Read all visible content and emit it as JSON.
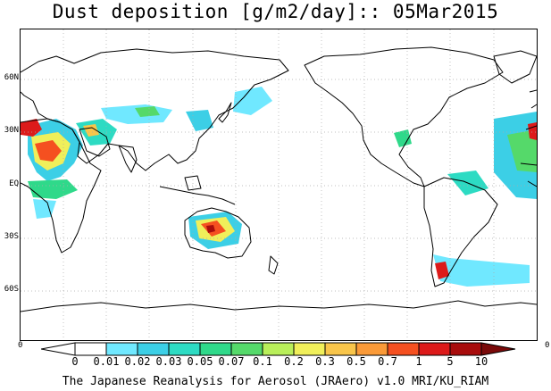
{
  "title": "Dust deposition [g/m2/day]:: 05Mar2015",
  "lat_labels": [
    "60N",
    "30N",
    "EQ",
    "30S",
    "60S"
  ],
  "edge_left": "0",
  "edge_right": "0",
  "colorbar": {
    "labels": [
      "0",
      "0.01",
      "0.02",
      "0.03",
      "0.05",
      "0.07",
      "0.1",
      "0.2",
      "0.3",
      "0.5",
      "0.7",
      "1",
      "5",
      "10"
    ],
    "colors": [
      "#ffffff",
      "#70e8ff",
      "#3ccfe6",
      "#2ddbc3",
      "#2fd98a",
      "#55d96a",
      "#b9ef5a",
      "#f0ef5a",
      "#f8c54a",
      "#fa9a38",
      "#f55020",
      "#dc1a1a",
      "#a80c0c",
      "#7a0a0a"
    ]
  },
  "footer": "The Japanese Reanalysis for Aerosol (JRAero) v1.0 MRI/KU_RIAM"
}
